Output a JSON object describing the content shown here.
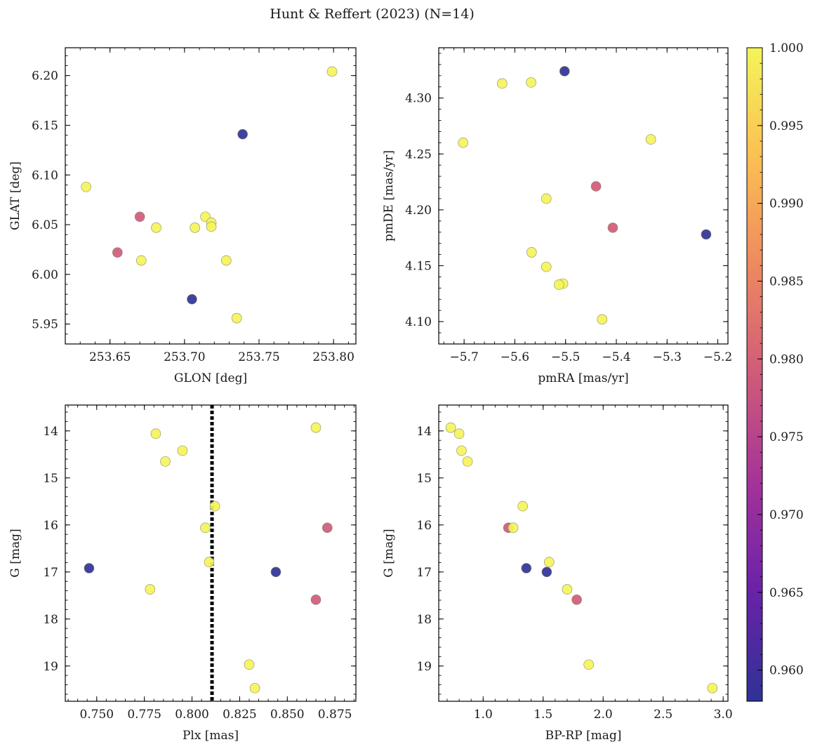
{
  "figure": {
    "title": "Hunt & Reffert (2023) (N=14)"
  },
  "colorbar": {
    "range": [
      0.958,
      1.0
    ],
    "ticks": [
      0.96,
      0.965,
      0.97,
      0.975,
      0.98,
      0.985,
      0.99,
      0.995,
      1.0
    ],
    "tick_labels": [
      "0.960",
      "0.965",
      "0.970",
      "0.975",
      "0.980",
      "0.985",
      "0.990",
      "0.995",
      "1.000"
    ],
    "colormap": "plasma",
    "colors": [
      "#2f3296",
      "#6a22a8",
      "#a3329a",
      "#cf5b79",
      "#ee8a60",
      "#fbbf52",
      "#f4f45a"
    ]
  },
  "chart_data": [
    {
      "id": "pos",
      "type": "scatter",
      "xlabel": "GLON [deg]",
      "ylabel": "GLAT [deg]",
      "xlim": [
        253.62,
        253.815
      ],
      "ylim": [
        5.93,
        6.228
      ],
      "xticks": [
        253.65,
        253.7,
        253.75,
        253.8
      ],
      "xtick_labels": [
        "253.65",
        "253.70",
        "253.75",
        "253.80"
      ],
      "yticks": [
        5.95,
        6.0,
        6.05,
        6.1,
        6.15,
        6.2
      ],
      "ytick_labels": [
        "5.95",
        "6.00",
        "6.05",
        "6.10",
        "6.15",
        "6.20"
      ],
      "points": [
        {
          "x": 253.634,
          "y": 6.088,
          "c": 1.0
        },
        {
          "x": 253.799,
          "y": 6.204,
          "c": 1.0
        },
        {
          "x": 253.739,
          "y": 6.141,
          "c": 0.958
        },
        {
          "x": 253.67,
          "y": 6.058,
          "c": 0.979
        },
        {
          "x": 253.681,
          "y": 6.047,
          "c": 1.0
        },
        {
          "x": 253.714,
          "y": 6.058,
          "c": 1.0
        },
        {
          "x": 253.707,
          "y": 6.047,
          "c": 1.0
        },
        {
          "x": 253.718,
          "y": 6.052,
          "c": 1.0
        },
        {
          "x": 253.718,
          "y": 6.048,
          "c": 1.0
        },
        {
          "x": 253.655,
          "y": 6.022,
          "c": 0.979
        },
        {
          "x": 253.671,
          "y": 6.014,
          "c": 1.0
        },
        {
          "x": 253.728,
          "y": 6.014,
          "c": 1.0
        },
        {
          "x": 253.705,
          "y": 5.975,
          "c": 0.958
        },
        {
          "x": 253.735,
          "y": 5.956,
          "c": 1.0
        }
      ]
    },
    {
      "id": "pm",
      "type": "scatter",
      "xlabel": "pmRA [mas/yr]",
      "ylabel": "pmDE [mas/yr]",
      "xlim": [
        -5.75,
        -5.18
      ],
      "ylim": [
        4.08,
        4.345
      ],
      "xticks": [
        -5.7,
        -5.6,
        -5.5,
        -5.4,
        -5.3,
        -5.2
      ],
      "xtick_labels": [
        "−5.7",
        "−5.6",
        "−5.5",
        "−5.4",
        "−5.3",
        "−5.2"
      ],
      "yticks": [
        4.1,
        4.15,
        4.2,
        4.25,
        4.3
      ],
      "ytick_labels": [
        "4.10",
        "4.15",
        "4.20",
        "4.25",
        "4.30"
      ],
      "points": [
        {
          "x": -5.502,
          "y": 4.324,
          "c": 0.958
        },
        {
          "x": -5.625,
          "y": 4.313,
          "c": 1.0
        },
        {
          "x": -5.568,
          "y": 4.314,
          "c": 1.0
        },
        {
          "x": -5.702,
          "y": 4.26,
          "c": 1.0
        },
        {
          "x": -5.332,
          "y": 4.263,
          "c": 1.0
        },
        {
          "x": -5.44,
          "y": 4.221,
          "c": 0.979
        },
        {
          "x": -5.538,
          "y": 4.21,
          "c": 1.0
        },
        {
          "x": -5.407,
          "y": 4.184,
          "c": 0.979
        },
        {
          "x": -5.223,
          "y": 4.178,
          "c": 0.958
        },
        {
          "x": -5.567,
          "y": 4.162,
          "c": 1.0
        },
        {
          "x": -5.538,
          "y": 4.149,
          "c": 1.0
        },
        {
          "x": -5.505,
          "y": 4.134,
          "c": 1.0
        },
        {
          "x": -5.513,
          "y": 4.133,
          "c": 1.0
        },
        {
          "x": -5.428,
          "y": 4.102,
          "c": 1.0
        }
      ]
    },
    {
      "id": "plx",
      "type": "scatter",
      "xlabel": "Plx [mas]",
      "ylabel": "G [mag]",
      "xlim": [
        0.7335,
        0.886
      ],
      "ylim": [
        19.75,
        13.45
      ],
      "xticks": [
        0.75,
        0.775,
        0.8,
        0.825,
        0.85,
        0.875
      ],
      "xtick_labels": [
        "0.750",
        "0.775",
        "0.800",
        "0.825",
        "0.850",
        "0.875"
      ],
      "yticks": [
        14,
        15,
        16,
        17,
        18,
        19
      ],
      "ytick_labels": [
        "14",
        "15",
        "16",
        "17",
        "18",
        "19"
      ],
      "vline": 0.8105,
      "points": [
        {
          "x": 0.865,
          "y": 13.93,
          "c": 1.0
        },
        {
          "x": 0.781,
          "y": 14.06,
          "c": 1.0
        },
        {
          "x": 0.795,
          "y": 14.42,
          "c": 1.0
        },
        {
          "x": 0.786,
          "y": 14.65,
          "c": 1.0
        },
        {
          "x": 0.812,
          "y": 15.6,
          "c": 1.0
        },
        {
          "x": 0.807,
          "y": 16.06,
          "c": 1.0
        },
        {
          "x": 0.871,
          "y": 16.06,
          "c": 0.979
        },
        {
          "x": 0.809,
          "y": 16.79,
          "c": 1.0
        },
        {
          "x": 0.746,
          "y": 16.92,
          "c": 0.958
        },
        {
          "x": 0.844,
          "y": 17.0,
          "c": 0.958
        },
        {
          "x": 0.778,
          "y": 17.37,
          "c": 1.0
        },
        {
          "x": 0.865,
          "y": 17.59,
          "c": 0.979
        },
        {
          "x": 0.83,
          "y": 18.97,
          "c": 1.0
        },
        {
          "x": 0.833,
          "y": 19.47,
          "c": 1.0
        }
      ]
    },
    {
      "id": "cmd",
      "type": "scatter",
      "xlabel": "BP-RP [mag]",
      "ylabel": "G [mag]",
      "xlim": [
        0.63,
        3.04
      ],
      "ylim": [
        19.75,
        13.45
      ],
      "xticks": [
        1.0,
        1.5,
        2.0,
        2.5,
        3.0
      ],
      "xtick_labels": [
        "1.0",
        "1.5",
        "2.0",
        "2.5",
        "3.0"
      ],
      "yticks": [
        14,
        15,
        16,
        17,
        18,
        19
      ],
      "ytick_labels": [
        "14",
        "15",
        "16",
        "17",
        "18",
        "19"
      ],
      "points": [
        {
          "x": 0.73,
          "y": 13.93,
          "c": 1.0
        },
        {
          "x": 0.8,
          "y": 14.06,
          "c": 1.0
        },
        {
          "x": 0.82,
          "y": 14.42,
          "c": 1.0
        },
        {
          "x": 0.87,
          "y": 14.65,
          "c": 1.0
        },
        {
          "x": 1.33,
          "y": 15.6,
          "c": 1.0
        },
        {
          "x": 1.21,
          "y": 16.06,
          "c": 0.979
        },
        {
          "x": 1.25,
          "y": 16.06,
          "c": 1.0
        },
        {
          "x": 1.55,
          "y": 16.79,
          "c": 1.0
        },
        {
          "x": 1.36,
          "y": 16.92,
          "c": 0.958
        },
        {
          "x": 1.53,
          "y": 17.0,
          "c": 0.958
        },
        {
          "x": 1.7,
          "y": 17.37,
          "c": 1.0
        },
        {
          "x": 1.78,
          "y": 17.59,
          "c": 0.979
        },
        {
          "x": 1.88,
          "y": 18.97,
          "c": 1.0
        },
        {
          "x": 2.91,
          "y": 19.47,
          "c": 1.0
        }
      ]
    }
  ]
}
